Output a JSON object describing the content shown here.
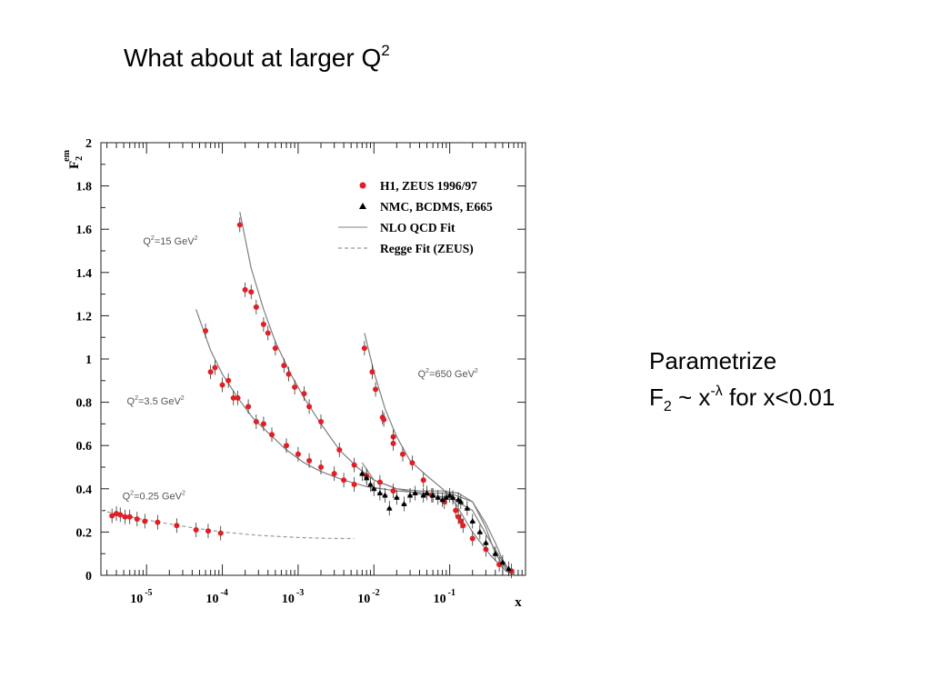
{
  "slide": {
    "title_text": "What about at larger Q",
    "title_sup": "2",
    "note_line1": "Parametrize",
    "note_f": "F",
    "note_sub": "2",
    "note_mid": " ~ x",
    "note_sup": "-λ",
    "note_end": " for x<0.01"
  },
  "chart_data": {
    "type": "scatter",
    "x_scale": "log",
    "xlabel": "x",
    "ylabel": "F",
    "ylabel_sub": "2",
    "ylabel_sup": "em",
    "xlim": [
      2.5e-06,
      1
    ],
    "ylim": [
      0,
      2
    ],
    "x_ticks": [
      {
        "value": 1e-05,
        "base": "10",
        "exp": "-5"
      },
      {
        "value": 0.0001,
        "base": "10",
        "exp": "-4"
      },
      {
        "value": 0.001,
        "base": "10",
        "exp": "-3"
      },
      {
        "value": 0.01,
        "base": "10",
        "exp": "-2"
      },
      {
        "value": 0.1,
        "base": "10",
        "exp": "-1"
      }
    ],
    "y_ticks": [
      {
        "value": 0,
        "label": "0"
      },
      {
        "value": 0.2,
        "label": "0.2"
      },
      {
        "value": 0.4,
        "label": "0.4"
      },
      {
        "value": 0.6,
        "label": "0.6"
      },
      {
        "value": 0.8,
        "label": "0.8"
      },
      {
        "value": 1,
        "label": "1"
      },
      {
        "value": 1.2,
        "label": "1.2"
      },
      {
        "value": 1.4,
        "label": "1.4"
      },
      {
        "value": 1.6,
        "label": "1.6"
      },
      {
        "value": 1.8,
        "label": "1.8"
      },
      {
        "value": 2,
        "label": "2"
      }
    ],
    "legend_position": "top-right",
    "legend": [
      {
        "label": "H1, ZEUS 1996/97",
        "marker": "circle",
        "color": "#e31e24"
      },
      {
        "label": "NMC, BCDMS, E665",
        "marker": "triangle",
        "color": "#000000"
      },
      {
        "label": "NLO QCD Fit",
        "marker": "solid-line",
        "color": "#999999"
      },
      {
        "label": "Regge Fit (ZEUS)",
        "marker": "dashed-line",
        "color": "#999999"
      }
    ],
    "annotations": [
      {
        "q": "Q",
        "sup1": "2",
        "rest": "=15 GeV",
        "sup2": "2",
        "x": 9e-06,
        "y": 1.53
      },
      {
        "q": "Q",
        "sup1": "2",
        "rest": "=3.5 GeV",
        "sup2": "2",
        "x": 5.5e-06,
        "y": 0.79
      },
      {
        "q": "Q",
        "sup1": "2",
        "rest": "=650 GeV",
        "sup2": "2",
        "x": 0.038,
        "y": 0.915
      },
      {
        "q": "Q",
        "sup1": "2",
        "rest": "=0.25 GeV",
        "sup2": "2",
        "x": 4.8e-06,
        "y": 0.35
      }
    ],
    "series": [
      {
        "name": "H1, ZEUS 1996/97",
        "marker": "circle",
        "color": "#e31e24",
        "points": [
          [
            3.5e-06,
            0.275
          ],
          [
            4e-06,
            0.285
          ],
          [
            4.5e-06,
            0.28
          ],
          [
            5.2e-06,
            0.27
          ],
          [
            6e-06,
            0.27
          ],
          [
            7.5e-06,
            0.26
          ],
          [
            9.5e-06,
            0.25
          ],
          [
            1.4e-05,
            0.245
          ],
          [
            2.5e-05,
            0.23
          ],
          [
            4.5e-05,
            0.21
          ],
          [
            6.5e-05,
            0.205
          ],
          [
            9.5e-05,
            0.195
          ],
          [
            6e-05,
            1.13
          ],
          [
            7e-05,
            0.94
          ],
          [
            8e-05,
            0.96
          ],
          [
            0.0001,
            0.88
          ],
          [
            0.00012,
            0.9
          ],
          [
            0.00014,
            0.82
          ],
          [
            0.00016,
            0.82
          ],
          [
            0.00022,
            0.78
          ],
          [
            0.00028,
            0.71
          ],
          [
            0.00035,
            0.7
          ],
          [
            0.00045,
            0.65
          ],
          [
            0.0007,
            0.6
          ],
          [
            0.001,
            0.56
          ],
          [
            0.0014,
            0.53
          ],
          [
            0.002,
            0.5
          ],
          [
            0.003,
            0.47
          ],
          [
            0.004,
            0.44
          ],
          [
            0.0055,
            0.42
          ],
          [
            0.00017,
            1.62
          ],
          [
            0.0002,
            1.32
          ],
          [
            0.00024,
            1.31
          ],
          [
            0.00028,
            1.24
          ],
          [
            0.00035,
            1.16
          ],
          [
            0.0004,
            1.12
          ],
          [
            0.0005,
            1.05
          ],
          [
            0.00065,
            0.97
          ],
          [
            0.00075,
            0.93
          ],
          [
            0.0009,
            0.87
          ],
          [
            0.0012,
            0.84
          ],
          [
            0.0014,
            0.78
          ],
          [
            0.002,
            0.71
          ],
          [
            0.0035,
            0.58
          ],
          [
            0.0055,
            0.51
          ],
          [
            0.008,
            0.46
          ],
          [
            0.012,
            0.43
          ],
          [
            0.018,
            0.39
          ],
          [
            0.0075,
            1.05
          ],
          [
            0.0095,
            0.94
          ],
          [
            0.0105,
            0.86
          ],
          [
            0.013,
            0.73
          ],
          [
            0.0135,
            0.72
          ],
          [
            0.018,
            0.64
          ],
          [
            0.018,
            0.61
          ],
          [
            0.024,
            0.56
          ],
          [
            0.032,
            0.52
          ],
          [
            0.045,
            0.44
          ],
          [
            0.058,
            0.37
          ],
          [
            0.085,
            0.34
          ],
          [
            0.12,
            0.3
          ],
          [
            0.13,
            0.27
          ],
          [
            0.14,
            0.25
          ],
          [
            0.15,
            0.23
          ],
          [
            0.2,
            0.17
          ],
          [
            0.3,
            0.12
          ],
          [
            0.45,
            0.05
          ],
          [
            0.65,
            0.02
          ]
        ]
      },
      {
        "name": "NMC, BCDMS, E665",
        "marker": "triangle",
        "color": "#000000",
        "points": [
          [
            0.007,
            0.47
          ],
          [
            0.008,
            0.45
          ],
          [
            0.009,
            0.42
          ],
          [
            0.01,
            0.4
          ],
          [
            0.012,
            0.38
          ],
          [
            0.014,
            0.37
          ],
          [
            0.016,
            0.31
          ],
          [
            0.02,
            0.36
          ],
          [
            0.025,
            0.33
          ],
          [
            0.03,
            0.37
          ],
          [
            0.035,
            0.38
          ],
          [
            0.045,
            0.37
          ],
          [
            0.05,
            0.38
          ],
          [
            0.06,
            0.37
          ],
          [
            0.07,
            0.36
          ],
          [
            0.08,
            0.35
          ],
          [
            0.09,
            0.36
          ],
          [
            0.1,
            0.37
          ],
          [
            0.11,
            0.36
          ],
          [
            0.13,
            0.35
          ],
          [
            0.14,
            0.34
          ],
          [
            0.17,
            0.31
          ],
          [
            0.2,
            0.25
          ],
          [
            0.25,
            0.2
          ],
          [
            0.3,
            0.15
          ],
          [
            0.4,
            0.1
          ],
          [
            0.5,
            0.06
          ],
          [
            0.6,
            0.03
          ]
        ]
      }
    ],
    "curves": [
      {
        "style": "solid",
        "points": [
          [
            0.00017,
            1.68
          ],
          [
            0.00024,
            1.42
          ],
          [
            0.00035,
            1.23
          ],
          [
            0.0005,
            1.08
          ],
          [
            0.0008,
            0.93
          ],
          [
            0.0012,
            0.82
          ],
          [
            0.002,
            0.7
          ],
          [
            0.0035,
            0.58
          ],
          [
            0.006,
            0.5
          ],
          [
            0.01,
            0.44
          ],
          [
            0.02,
            0.4
          ],
          [
            0.05,
            0.37
          ],
          [
            0.1,
            0.36
          ],
          [
            0.2,
            0.3
          ],
          [
            0.35,
            0.15
          ],
          [
            0.55,
            0.04
          ],
          [
            0.7,
            0.01
          ]
        ]
      },
      {
        "style": "solid",
        "points": [
          [
            4.5e-05,
            1.23
          ],
          [
            7e-05,
            1.04
          ],
          [
            0.0001,
            0.93
          ],
          [
            0.00016,
            0.82
          ],
          [
            0.00025,
            0.73
          ],
          [
            0.0004,
            0.66
          ],
          [
            0.0007,
            0.58
          ],
          [
            0.0012,
            0.52
          ],
          [
            0.002,
            0.48
          ],
          [
            0.004,
            0.44
          ],
          [
            0.008,
            0.41
          ],
          [
            0.02,
            0.39
          ],
          [
            0.05,
            0.38
          ],
          [
            0.1,
            0.38
          ],
          [
            0.2,
            0.34
          ],
          [
            0.3,
            0.22
          ],
          [
            0.4,
            0.1
          ],
          [
            0.55,
            0.03
          ],
          [
            0.7,
            0.0
          ]
        ]
      },
      {
        "style": "solid",
        "points": [
          [
            0.0075,
            1.12
          ],
          [
            0.01,
            0.94
          ],
          [
            0.014,
            0.77
          ],
          [
            0.02,
            0.64
          ],
          [
            0.03,
            0.53
          ],
          [
            0.05,
            0.46
          ],
          [
            0.08,
            0.4
          ],
          [
            0.12,
            0.33
          ],
          [
            0.2,
            0.2
          ],
          [
            0.35,
            0.09
          ],
          [
            0.55,
            0.02
          ],
          [
            0.7,
            0.0
          ]
        ]
      },
      {
        "style": "solid",
        "points": [
          [
            0.007,
            0.52
          ],
          [
            0.01,
            0.44
          ],
          [
            0.02,
            0.4
          ],
          [
            0.04,
            0.39
          ],
          [
            0.08,
            0.39
          ],
          [
            0.13,
            0.38
          ],
          [
            0.2,
            0.34
          ],
          [
            0.3,
            0.24
          ],
          [
            0.4,
            0.15
          ],
          [
            0.5,
            0.07
          ],
          [
            0.65,
            0.01
          ]
        ]
      },
      {
        "style": "dashed",
        "points": [
          [
            2.5e-06,
            0.3
          ],
          [
            6e-06,
            0.27
          ],
          [
            1.5e-05,
            0.245
          ],
          [
            4e-05,
            0.22
          ],
          [
            0.0001,
            0.2
          ],
          [
            0.0003,
            0.185
          ],
          [
            0.001,
            0.175
          ],
          [
            0.003,
            0.17
          ],
          [
            0.0055,
            0.17
          ]
        ]
      }
    ]
  }
}
